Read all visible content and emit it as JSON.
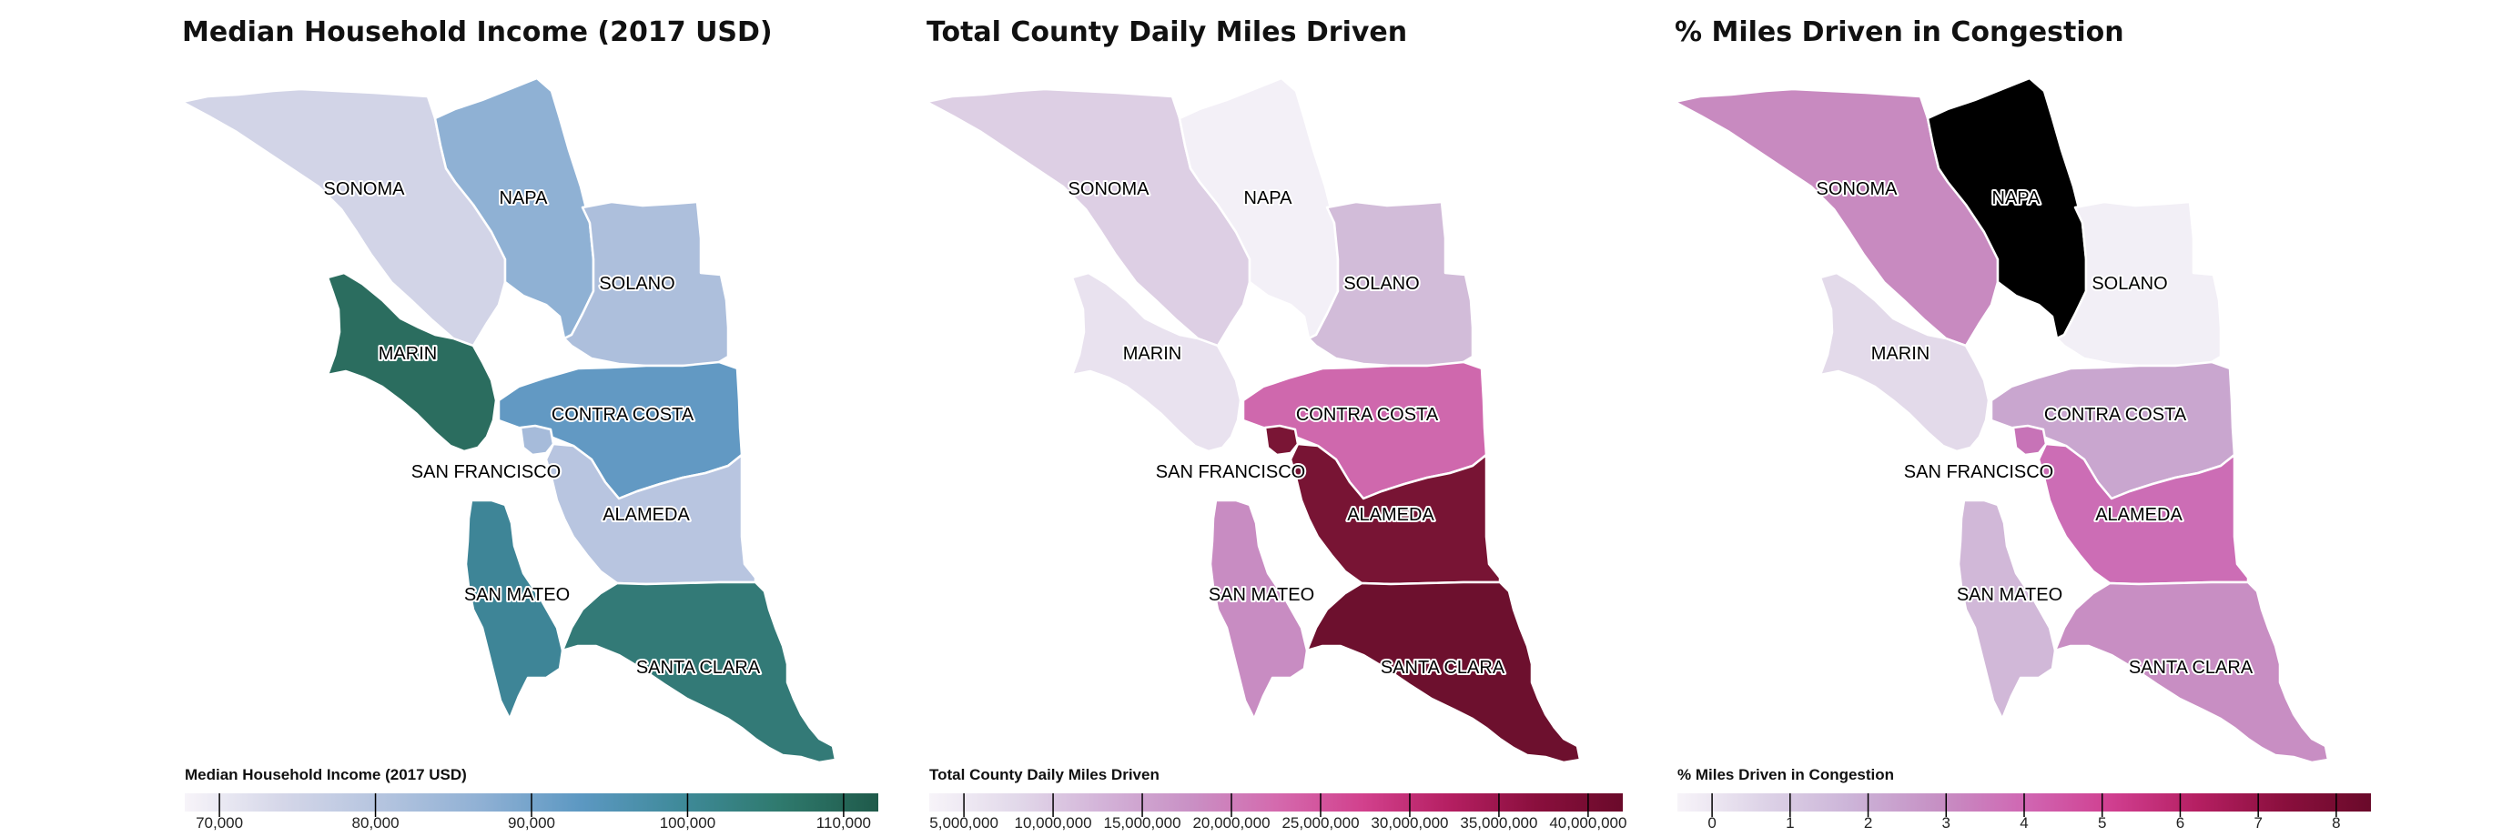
{
  "maps": [
    {
      "id": "income",
      "title": "Median Household Income (2017 USD)",
      "legend_title": "Median Household Income (2017 USD)",
      "ticks": [
        "70,000",
        "80,000",
        "90,000",
        "100,000",
        "110,000"
      ],
      "ramp": [
        "#f7f4f9",
        "#d4d6e8",
        "#b4c4df",
        "#8fb0d4",
        "#5c98c2",
        "#3f8a9a",
        "#2f7a6e",
        "#1f5a4a"
      ],
      "counties": [
        {
          "name": "SONOMA",
          "fill": "#d2d4e7"
        },
        {
          "name": "NAPA",
          "fill": "#8fb1d4"
        },
        {
          "name": "SOLANO",
          "fill": "#adbfdc"
        },
        {
          "name": "MARIN",
          "fill": "#2b6d5f"
        },
        {
          "name": "CONTRA COSTA",
          "fill": "#6299c3"
        },
        {
          "name": "SAN FRANCISCO",
          "fill": "#a6bbda"
        },
        {
          "name": "ALAMEDA",
          "fill": "#b8c5e0"
        },
        {
          "name": "SAN MATEO",
          "fill": "#3e8597"
        },
        {
          "name": "SANTA CLARA",
          "fill": "#337a77"
        }
      ]
    },
    {
      "id": "miles",
      "title": "Total County Daily Miles Driven",
      "legend_title": "Total County Daily Miles Driven",
      "ticks": [
        "5,000,000",
        "10,000,000",
        "15,000,000",
        "20,000,000",
        "25,000,000",
        "30,000,000",
        "35,000,000",
        "40,000,000"
      ],
      "ramp": [
        "#f7f4f9",
        "#e2d9ea",
        "#d3b3d8",
        "#c991c5",
        "#d46aae",
        "#d2418d",
        "#b51f62",
        "#8a0f3d",
        "#6a0a2a"
      ],
      "counties": [
        {
          "name": "SONOMA",
          "fill": "#ddcfe4"
        },
        {
          "name": "NAPA",
          "fill": "#f3f0f7"
        },
        {
          "name": "SOLANO",
          "fill": "#d2bcd9"
        },
        {
          "name": "MARIN",
          "fill": "#e9e2ef"
        },
        {
          "name": "CONTRA COSTA",
          "fill": "#cf68ad"
        },
        {
          "name": "SAN FRANCISCO",
          "fill": "#7a1535"
        },
        {
          "name": "ALAMEDA",
          "fill": "#781434"
        },
        {
          "name": "SAN MATEO",
          "fill": "#c88cc2"
        },
        {
          "name": "SANTA CLARA",
          "fill": "#6d102e"
        }
      ]
    },
    {
      "id": "congestion",
      "title": "% Miles Driven in Congestion",
      "legend_title": "% Miles Driven in Congestion",
      "ticks": [
        "0",
        "1",
        "2",
        "3",
        "4",
        "5",
        "6",
        "7",
        "8"
      ],
      "ramp": [
        "#f7f4f9",
        "#ddd3e7",
        "#ccb4d8",
        "#c690c4",
        "#d067b3",
        "#d03f90",
        "#b51f62",
        "#8a0f3d",
        "#6a0a2a"
      ],
      "counties": [
        {
          "name": "SONOMA",
          "fill": "#c88ac0"
        },
        {
          "name": "NAPA",
          "fill": "#000000"
        },
        {
          "name": "SOLANO",
          "fill": "#f2eff6"
        },
        {
          "name": "MARIN",
          "fill": "#e3daea"
        },
        {
          "name": "CONTRA COSTA",
          "fill": "#c9a6cf"
        },
        {
          "name": "SAN FRANCISCO",
          "fill": "#c773b7"
        },
        {
          "name": "ALAMEDA",
          "fill": "#cc6db5"
        },
        {
          "name": "SAN MATEO",
          "fill": "#d1b8d8"
        },
        {
          "name": "SANTA CLARA",
          "fill": "#c88ec3"
        }
      ]
    }
  ]
}
